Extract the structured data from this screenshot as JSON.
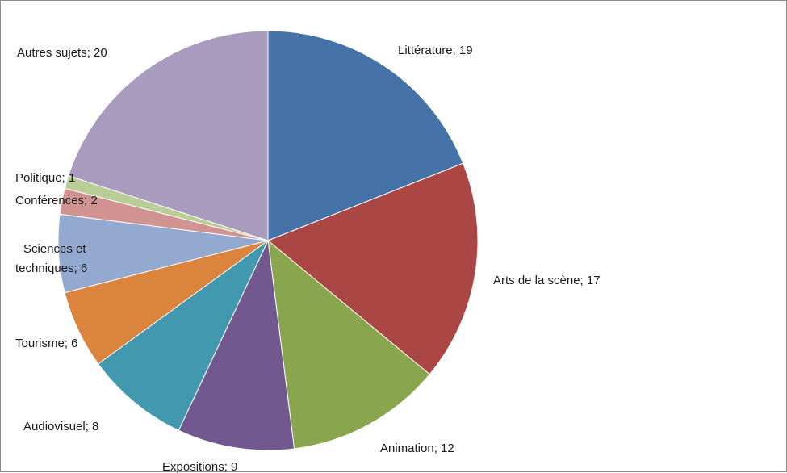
{
  "chart_data": {
    "type": "pie",
    "title": "",
    "slices": [
      {
        "label": "Littérature",
        "value": 19,
        "color": "#4572A7"
      },
      {
        "label": "Arts de  la scène",
        "value": 17,
        "color": "#AA4643"
      },
      {
        "label": "Animation",
        "value": 12,
        "color": "#89A54E"
      },
      {
        "label": "Expositions",
        "value": 9,
        "color": "#71588F"
      },
      {
        "label": "Audiovisuel",
        "value": 8,
        "color": "#4198AF"
      },
      {
        "label": "Tourisme",
        "value": 6,
        "color": "#DB843D"
      },
      {
        "label": "Sciences et techniques",
        "value": 6,
        "color": "#93A9CF"
      },
      {
        "label": "Conférences",
        "value": 2,
        "color": "#D19392"
      },
      {
        "label": "Politique",
        "value": 1,
        "color": "#B9CD96"
      },
      {
        "label": "Autres sujets",
        "value": 20,
        "color": "#A99BBD"
      }
    ],
    "labels": [
      {
        "text": "Littérature; 19"
      },
      {
        "text": "Arts de  la scène; 17"
      },
      {
        "text": "Animation; 12"
      },
      {
        "text": "Expositions; 9"
      },
      {
        "text": "Audiovisuel; 8"
      },
      {
        "text": "Tourisme; 6"
      },
      {
        "lines": [
          "Sciences et",
          "techniques; 6"
        ]
      },
      {
        "text": "Conférences; 2"
      },
      {
        "text": "Politique; 1"
      },
      {
        "text": "Autres sujets; 20"
      }
    ]
  }
}
